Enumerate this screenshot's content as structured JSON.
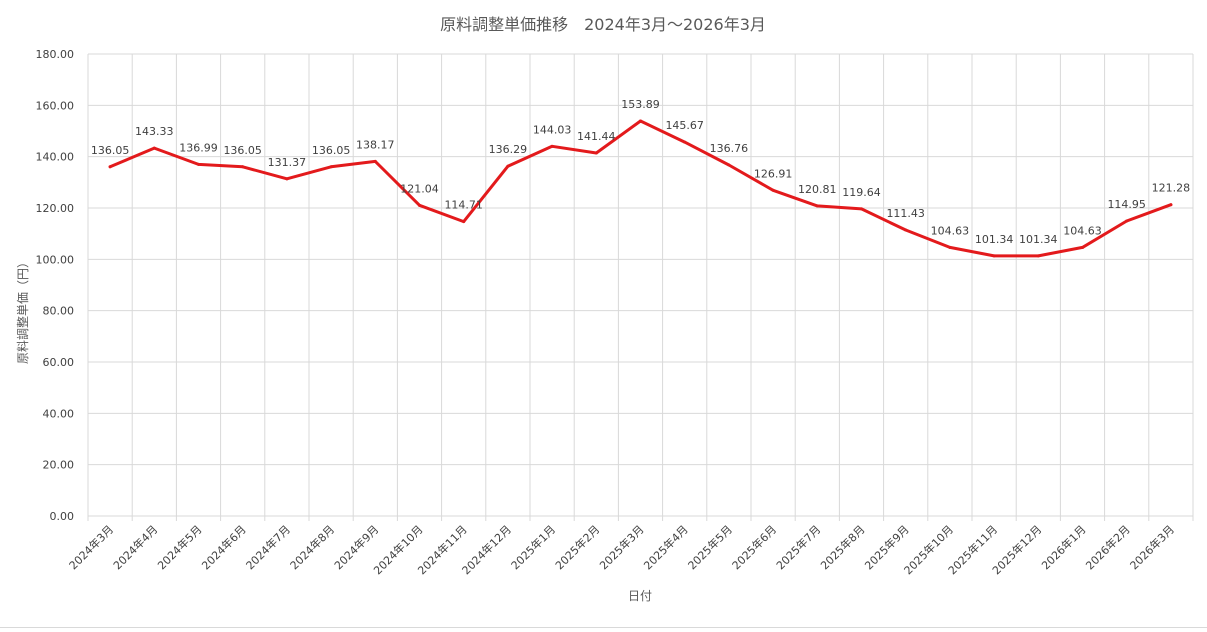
{
  "chart_data": {
    "type": "line",
    "title": "原料調整単価推移　2024年3月～2026年3月",
    "xlabel": "日付",
    "ylabel": "原料調整単価（円）",
    "ylim": [
      0,
      180
    ],
    "yticks": [
      "0.00",
      "20.00",
      "40.00",
      "60.00",
      "80.00",
      "100.00",
      "120.00",
      "140.00",
      "160.00",
      "180.00"
    ],
    "grid": true,
    "categories": [
      "2024年3月",
      "2024年4月",
      "2024年5月",
      "2024年6月",
      "2024年7月",
      "2024年8月",
      "2024年9月",
      "2024年10月",
      "2024年11月",
      "2024年12月",
      "2025年1月",
      "2025年2月",
      "2025年3月",
      "2025年4月",
      "2025年5月",
      "2025年6月",
      "2025年7月",
      "2025年8月",
      "2025年9月",
      "2025年10月",
      "2025年11月",
      "2025年12月",
      "2026年1月",
      "2026年2月",
      "2026年3月"
    ],
    "series": [
      {
        "values": [
          136.05,
          143.33,
          136.99,
          136.05,
          131.37,
          136.05,
          138.17,
          121.04,
          114.71,
          136.29,
          144.03,
          141.44,
          153.89,
          145.67,
          136.76,
          126.91,
          120.81,
          119.64,
          111.43,
          104.63,
          101.34,
          101.34,
          104.63,
          114.95,
          121.28
        ],
        "labels": [
          "136.05",
          "143.33",
          "136.99",
          "136.05",
          "131.37",
          "136.05",
          "138.17",
          "121.04",
          "114.71",
          "136.29",
          "144.03",
          "141.44",
          "153.89",
          "145.67",
          "136.76",
          "126.91",
          "120.81",
          "119.64",
          "111.43",
          "104.63",
          "101.34",
          "101.34",
          "104.63",
          "114.95",
          "121.28"
        ],
        "color": "#e31a1c"
      }
    ]
  }
}
